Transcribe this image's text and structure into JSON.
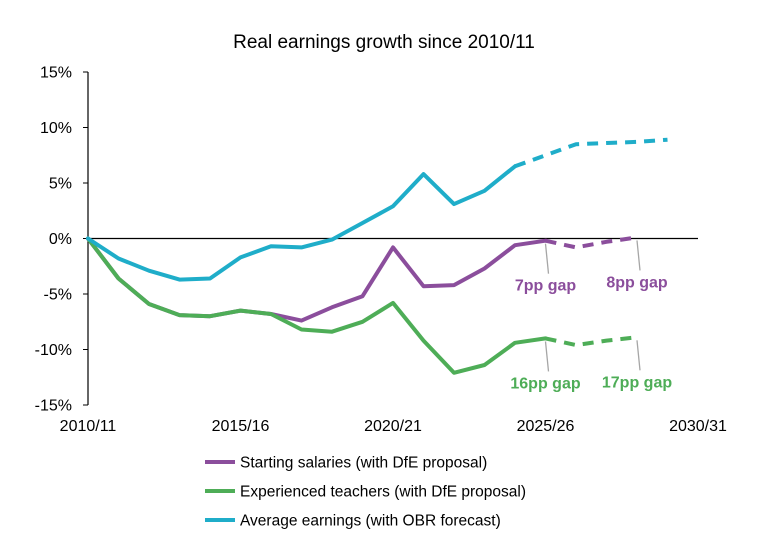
{
  "chart_data": {
    "type": "line",
    "title": "Real earnings growth since 2010/11",
    "xlabel": "",
    "ylabel": "",
    "x": [
      2010,
      2011,
      2012,
      2013,
      2014,
      2015,
      2016,
      2017,
      2018,
      2019,
      2020,
      2021,
      2022,
      2023,
      2024,
      2025,
      2026,
      2027,
      2028
    ],
    "xlim": [
      2010,
      2030
    ],
    "x_tick_values": [
      2010,
      2015,
      2020,
      2025,
      2030
    ],
    "x_tick_labels": [
      "2010/11",
      "2015/16",
      "2020/21",
      "2025/26",
      "2030/31"
    ],
    "ylim": [
      -15,
      15
    ],
    "y_tick_values": [
      15,
      10,
      5,
      0,
      -5,
      -10,
      -15
    ],
    "y_tick_labels": [
      "15%",
      "10%",
      "5%",
      "0%",
      "-5%",
      "-10%",
      "-15%"
    ],
    "series": [
      {
        "name": "Starting salaries (with DfE proposal)",
        "color": "#8B4E9C",
        "values": [
          0,
          -3.6,
          -5.9,
          -6.9,
          -7.0,
          -6.5,
          -6.8,
          -7.4,
          -6.2,
          -5.2,
          -0.8,
          -4.3,
          -4.2,
          -2.7,
          -0.6,
          -0.2,
          -0.8,
          -0.3,
          0.1
        ],
        "dashed_from_index": 15
      },
      {
        "name": "Experienced teachers (with DfE proposal)",
        "color": "#4EAD57",
        "values": [
          0,
          -3.6,
          -5.9,
          -6.9,
          -7.0,
          -6.5,
          -6.8,
          -8.2,
          -8.4,
          -7.5,
          -5.8,
          -9.2,
          -12.1,
          -11.4,
          -9.4,
          -9.0,
          -9.6,
          -9.2,
          -8.9
        ],
        "dashed_from_index": 15
      },
      {
        "name": "Average earnings (with OBR forecast)",
        "color": "#1FADC9",
        "values": [
          0,
          -1.8,
          -2.9,
          -3.7,
          -3.6,
          -1.7,
          -0.7,
          -0.8,
          -0.1,
          1.4,
          2.9,
          5.8,
          3.1,
          4.3,
          6.5,
          7.5,
          8.5,
          8.6,
          8.7,
          8.9
        ],
        "x": [
          2010,
          2011,
          2012,
          2013,
          2014,
          2015,
          2016,
          2017,
          2018,
          2019,
          2020,
          2021,
          2022,
          2023,
          2024,
          2025,
          2026,
          2027,
          2028,
          2029
        ],
        "dashed_from_index": 14
      }
    ],
    "annotations": [
      {
        "text": "7pp gap",
        "series": 0,
        "x": 2025,
        "color": "#8B4E9C"
      },
      {
        "text": "8pp gap",
        "series": 0,
        "x": 2028,
        "color": "#8B4E9C"
      },
      {
        "text": "16pp gap",
        "series": 1,
        "x": 2025,
        "color": "#4EAD57"
      },
      {
        "text": "17pp gap",
        "series": 1,
        "x": 2028,
        "color": "#4EAD57"
      }
    ],
    "legend": "bottom"
  }
}
